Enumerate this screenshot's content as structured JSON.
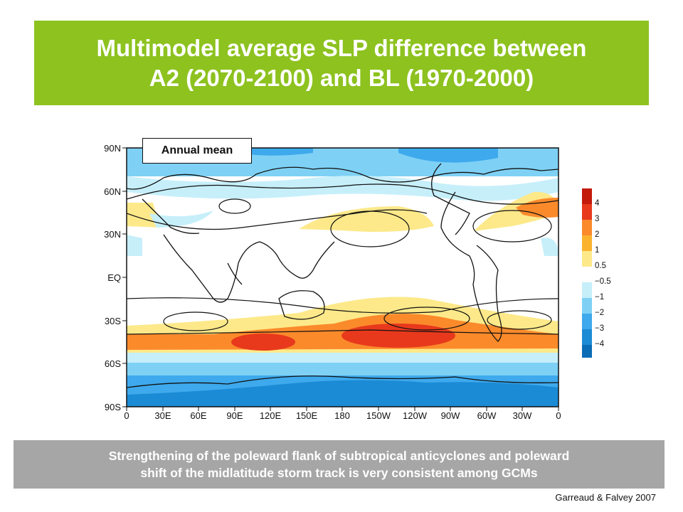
{
  "title": {
    "line1": "Multimodel average SLP difference between",
    "line2": "A2 (2070-2100) and BL (1970-2000)"
  },
  "map": {
    "panel_label": "Annual mean",
    "lat_ticks": [
      "90N",
      "60N",
      "30N",
      "EQ",
      "30S",
      "60S",
      "90S"
    ],
    "lon_ticks": [
      "0",
      "30E",
      "60E",
      "90E",
      "120E",
      "150E",
      "180",
      "150W",
      "120W",
      "90W",
      "60W",
      "30W",
      "0"
    ]
  },
  "colorbar": {
    "labels": [
      "4",
      "3",
      "2",
      "1",
      "0.5",
      "−0.5",
      "−1",
      "−2",
      "−3",
      "−4"
    ],
    "colors": [
      "#c31a0c",
      "#e8391c",
      "#fb8a2b",
      "#fde98a",
      "#ffffff",
      "#c6effa",
      "#7ed1f5",
      "#3ea9ec",
      "#1c8bd6",
      "#0b6cb6"
    ]
  },
  "footer": {
    "line1": "Strengthening of the poleward flank of subtropical anticyclones and poleward",
    "line2": "shift of the midlatitude storm track is very consistent among GCMs"
  },
  "credit": "Garreaud & Falvey 2007"
}
